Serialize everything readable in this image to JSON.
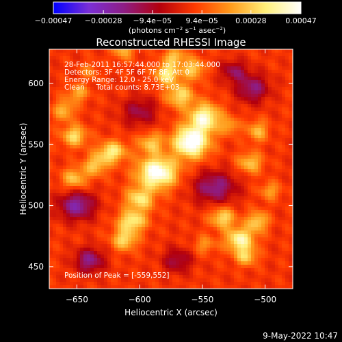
{
  "chart_data": {
    "type": "heatmap",
    "title": "Reconstructed RHESSI Image",
    "xlabel": "Heliocentric X (arcsec)",
    "ylabel": "Heliocentric Y (arcsec)",
    "xlim": [
      -672,
      -478
    ],
    "ylim": [
      432,
      628
    ],
    "xticks": [
      -650,
      -600,
      -550,
      -500
    ],
    "yticks": [
      450,
      500,
      550,
      600
    ],
    "xtick_labels": [
      "−650",
      "−600",
      "−550",
      "−500"
    ],
    "ytick_labels": [
      "450",
      "500",
      "550",
      "600"
    ],
    "colorbar": {
      "ticks": [
        -0.00047,
        -0.00028,
        -9.4e-05,
        9.4e-05,
        0.00028,
        0.00047
      ],
      "tick_labels": [
        "−0.00047",
        "−0.00028",
        "−9.4e−05",
        "9.4e−05",
        "0.00028",
        "0.00047"
      ],
      "range": [
        -0.00047,
        0.00047
      ],
      "colors": [
        "#0000ff",
        "#7a2fd6",
        "#8e1d84",
        "#b3000d",
        "#ff3a00",
        "#ff9a1a",
        "#fff07a",
        "#ffffff"
      ]
    },
    "annotations": [
      "28-Feb-2011 16:57:44.000 to 17:03:44.000",
      "Detectors: 3F 4F 5F 6F 7F 8F, Att 0",
      "Energy Range: 12.0 - 25.0 keV",
      "Clean     Total counts: 8.73E+03"
    ],
    "peak": {
      "label": "Position of Peak = [-559,552]",
      "x": -559,
      "y": 552
    },
    "sources": [
      {
        "x": -586,
        "y": 527,
        "sx": 11,
        "sy": 9,
        "amp": 0.00045
      },
      {
        "x": -559,
        "y": 552,
        "sx": 10,
        "sy": 9,
        "amp": 0.00047
      },
      {
        "x": -548,
        "y": 572,
        "sx": 9,
        "sy": 8,
        "amp": 0.00036
      },
      {
        "x": -568,
        "y": 590,
        "sx": 8,
        "sy": 7,
        "amp": 0.00026
      },
      {
        "x": -578,
        "y": 608,
        "sx": 7,
        "sy": 6,
        "amp": 0.0003
      },
      {
        "x": -557,
        "y": 612,
        "sx": 6,
        "sy": 6,
        "amp": 0.00024
      },
      {
        "x": -572,
        "y": 622,
        "sx": 6,
        "sy": 5,
        "amp": 0.00022
      },
      {
        "x": -591,
        "y": 551,
        "sx": 7,
        "sy": 6,
        "amp": 0.00022
      },
      {
        "x": -600,
        "y": 505,
        "sx": 8,
        "sy": 7,
        "amp": 0.00028
      },
      {
        "x": -606,
        "y": 487,
        "sx": 8,
        "sy": 6,
        "amp": 0.0003
      },
      {
        "x": -612,
        "y": 472,
        "sx": 7,
        "sy": 6,
        "amp": 0.00026
      },
      {
        "x": -622,
        "y": 544,
        "sx": 8,
        "sy": 6,
        "amp": 0.0003
      },
      {
        "x": -635,
        "y": 533,
        "sx": 7,
        "sy": 6,
        "amp": 0.00022
      },
      {
        "x": -652,
        "y": 557,
        "sx": 7,
        "sy": 6,
        "amp": 0.00026
      },
      {
        "x": -660,
        "y": 578,
        "sx": 6,
        "sy": 6,
        "amp": 0.0002
      },
      {
        "x": -652,
        "y": 522,
        "sx": 7,
        "sy": 6,
        "amp": 0.00022
      },
      {
        "x": -649,
        "y": 592,
        "sx": 6,
        "sy": 5,
        "amp": 0.00018
      },
      {
        "x": -520,
        "y": 472,
        "sx": 8,
        "sy": 7,
        "amp": 0.00034
      },
      {
        "x": -534,
        "y": 490,
        "sx": 7,
        "sy": 6,
        "amp": 0.00026
      },
      {
        "x": -506,
        "y": 487,
        "sx": 6,
        "sy": 6,
        "amp": 0.00024
      },
      {
        "x": -515,
        "y": 458,
        "sx": 6,
        "sy": 5,
        "amp": 0.00022
      },
      {
        "x": -512,
        "y": 535,
        "sx": 7,
        "sy": 6,
        "amp": 0.00022
      },
      {
        "x": -506,
        "y": 561,
        "sx": 6,
        "sy": 6,
        "amp": 0.0002
      },
      {
        "x": -528,
        "y": 565,
        "sx": 5,
        "sy": 5,
        "amp": 0.00016
      },
      {
        "x": -613,
        "y": 628,
        "sx": 6,
        "sy": 6,
        "amp": 0.0002
      },
      {
        "x": -548,
        "y": 468,
        "sx": 6,
        "sy": 5,
        "amp": 0.00014
      },
      {
        "x": -496,
        "y": 512,
        "sx": 6,
        "sy": 5,
        "amp": 0.00016
      },
      {
        "x": -640,
        "y": 610,
        "sx": 5,
        "sy": 5,
        "amp": 0.00012
      },
      {
        "x": -650,
        "y": 500,
        "sx": 10,
        "sy": 8,
        "amp": -0.0003
      },
      {
        "x": -540,
        "y": 515,
        "sx": 12,
        "sy": 9,
        "amp": -0.00026
      },
      {
        "x": -510,
        "y": 596,
        "sx": 9,
        "sy": 8,
        "amp": -0.00024
      },
      {
        "x": -600,
        "y": 577,
        "sx": 10,
        "sy": 8,
        "amp": -0.00018
      },
      {
        "x": -640,
        "y": 455,
        "sx": 8,
        "sy": 7,
        "amp": -0.00026
      },
      {
        "x": -570,
        "y": 455,
        "sx": 8,
        "sy": 7,
        "amp": -0.00018
      },
      {
        "x": -525,
        "y": 610,
        "sx": 7,
        "sy": 6,
        "amp": -0.0002
      }
    ],
    "background": 5e-05
  },
  "footer": {
    "date": "9-May-2022 10:47"
  }
}
